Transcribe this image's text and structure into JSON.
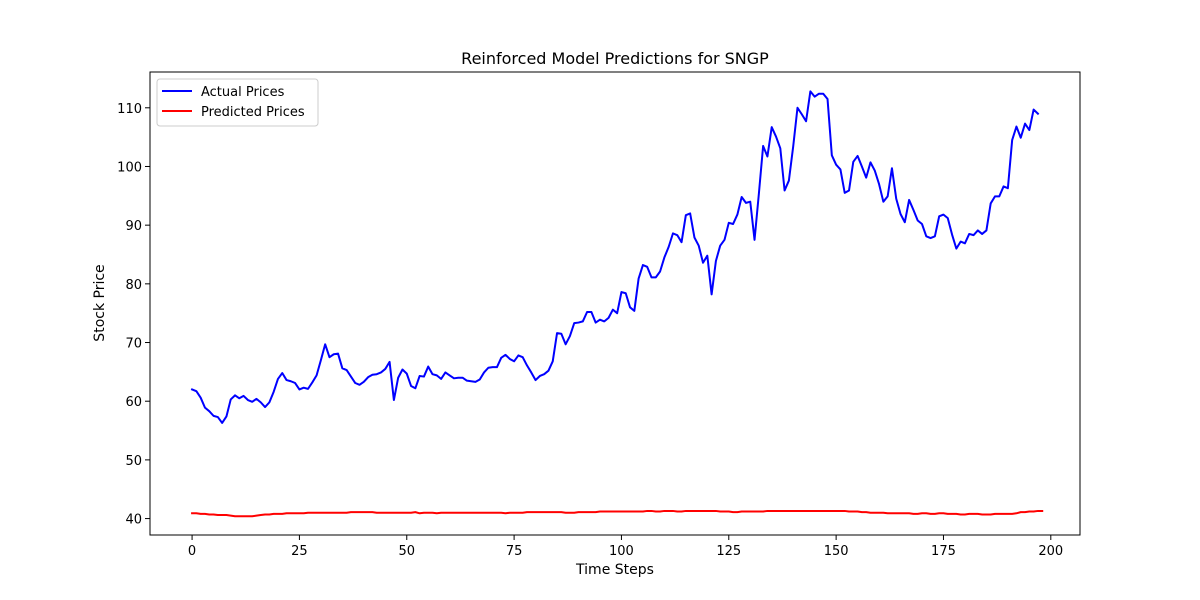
{
  "chart_data": {
    "type": "line",
    "title": "Reinforced Model Predictions for SNGP",
    "xlabel": "Time Steps",
    "ylabel": "Stock Price",
    "xlim": [
      -9.8,
      206.8
    ],
    "ylim": [
      37.2,
      116.1
    ],
    "xticks": [
      0,
      25,
      50,
      75,
      100,
      125,
      150,
      175,
      200
    ],
    "yticks": [
      40,
      50,
      60,
      70,
      80,
      90,
      100,
      110
    ],
    "legend_position": "upper-left",
    "grid": false,
    "series": [
      {
        "name": "Actual Prices",
        "color": "#0000ff",
        "values": [
          62.0,
          61.7,
          60.6,
          58.9,
          58.3,
          57.5,
          57.3,
          56.3,
          57.4,
          60.3,
          61.0,
          60.5,
          60.9,
          60.2,
          59.9,
          60.4,
          59.8,
          59.0,
          59.8,
          61.6,
          63.8,
          64.8,
          63.6,
          63.4,
          63.1,
          62.0,
          62.3,
          62.1,
          63.2,
          64.4,
          67.0,
          69.7,
          67.5,
          68.0,
          68.1,
          65.6,
          65.3,
          64.2,
          63.1,
          62.8,
          63.3,
          64.1,
          64.5,
          64.6,
          64.9,
          65.5,
          66.7,
          60.2,
          64.0,
          65.4,
          64.7,
          62.6,
          62.2,
          64.3,
          64.2,
          65.9,
          64.6,
          64.4,
          63.8,
          64.9,
          64.4,
          63.9,
          64.0,
          64.0,
          63.5,
          63.4,
          63.3,
          63.7,
          64.9,
          65.7,
          65.8,
          65.8,
          67.4,
          67.9,
          67.2,
          66.8,
          67.8,
          67.5,
          66.1,
          64.9,
          63.6,
          64.3,
          64.6,
          65.2,
          66.8,
          71.6,
          71.5,
          69.7,
          71.1,
          73.3,
          73.4,
          73.6,
          75.2,
          75.2,
          73.4,
          73.9,
          73.6,
          74.2,
          75.6,
          75.0,
          78.6,
          78.4,
          76.0,
          75.4,
          80.9,
          83.2,
          82.9,
          81.1,
          81.1,
          82.1,
          84.5,
          86.3,
          88.6,
          88.3,
          87.1,
          91.7,
          92.0,
          87.9,
          86.5,
          83.6,
          84.8,
          78.2,
          83.9,
          86.5,
          87.5,
          90.4,
          90.2,
          91.8,
          94.8,
          93.8,
          94.0,
          87.5,
          95.3,
          103.5,
          101.7,
          106.7,
          105.1,
          103.1,
          95.9,
          97.6,
          103.4,
          110.0,
          108.9,
          107.7,
          112.8,
          111.9,
          112.4,
          112.4,
          111.5,
          101.9,
          100.3,
          99.5,
          95.5,
          95.9,
          100.8,
          101.8,
          100.0,
          98.1,
          100.7,
          99.3,
          97.0,
          94.0,
          94.9,
          99.7,
          94.5,
          91.9,
          90.5,
          94.3,
          92.6,
          90.8,
          90.2,
          88.1,
          87.8,
          88.1,
          91.5,
          91.8,
          91.2,
          88.4,
          86.0,
          87.2,
          86.9,
          88.5,
          88.3,
          89.1,
          88.5,
          89.1,
          93.7,
          94.9,
          94.9,
          96.6,
          96.3,
          104.5,
          106.8,
          104.9,
          107.3,
          106.2,
          109.7,
          109.0
        ]
      },
      {
        "name": "Predicted Prices",
        "color": "#ff0000",
        "values": [
          40.9,
          40.9,
          40.8,
          40.8,
          40.7,
          40.7,
          40.6,
          40.6,
          40.6,
          40.5,
          40.4,
          40.4,
          40.4,
          40.4,
          40.4,
          40.5,
          40.6,
          40.7,
          40.7,
          40.8,
          40.8,
          40.8,
          40.9,
          40.9,
          40.9,
          40.9,
          40.9,
          41.0,
          41.0,
          41.0,
          41.0,
          41.0,
          41.0,
          41.0,
          41.0,
          41.0,
          41.0,
          41.1,
          41.1,
          41.1,
          41.1,
          41.1,
          41.1,
          41.0,
          41.0,
          41.0,
          41.0,
          41.0,
          41.0,
          41.0,
          41.0,
          41.0,
          41.1,
          40.9,
          41.0,
          41.0,
          41.0,
          40.9,
          41.0,
          41.0,
          41.0,
          41.0,
          41.0,
          41.0,
          41.0,
          41.0,
          41.0,
          41.0,
          41.0,
          41.0,
          41.0,
          41.0,
          41.0,
          40.9,
          41.0,
          41.0,
          41.0,
          41.0,
          41.1,
          41.1,
          41.1,
          41.1,
          41.1,
          41.1,
          41.1,
          41.1,
          41.1,
          41.0,
          41.0,
          41.0,
          41.1,
          41.1,
          41.1,
          41.1,
          41.1,
          41.2,
          41.2,
          41.2,
          41.2,
          41.2,
          41.2,
          41.2,
          41.2,
          41.2,
          41.2,
          41.2,
          41.3,
          41.3,
          41.2,
          41.2,
          41.3,
          41.3,
          41.3,
          41.2,
          41.2,
          41.3,
          41.3,
          41.3,
          41.3,
          41.3,
          41.3,
          41.3,
          41.3,
          41.2,
          41.2,
          41.2,
          41.1,
          41.1,
          41.2,
          41.2,
          41.2,
          41.2,
          41.2,
          41.2,
          41.3,
          41.3,
          41.3,
          41.3,
          41.3,
          41.3,
          41.3,
          41.3,
          41.3,
          41.3,
          41.3,
          41.3,
          41.3,
          41.3,
          41.3,
          41.3,
          41.3,
          41.3,
          41.3,
          41.2,
          41.2,
          41.2,
          41.1,
          41.1,
          41.0,
          41.0,
          41.0,
          41.0,
          40.9,
          40.9,
          40.9,
          40.9,
          40.9,
          40.9,
          40.8,
          40.8,
          40.9,
          40.9,
          40.8,
          40.8,
          40.9,
          40.9,
          40.8,
          40.8,
          40.8,
          40.7,
          40.7,
          40.8,
          40.8,
          40.8,
          40.7,
          40.7,
          40.7,
          40.8,
          40.8,
          40.8,
          40.8,
          40.8,
          40.9,
          41.1,
          41.1,
          41.2,
          41.2,
          41.3,
          41.3
        ]
      }
    ]
  }
}
